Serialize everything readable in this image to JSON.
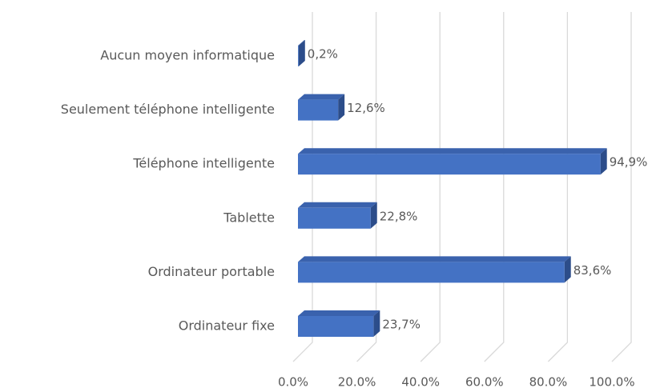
{
  "chart_data": {
    "type": "bar",
    "orientation": "horizontal",
    "three_d": true,
    "categories": [
      "Aucun moyen informatique",
      "Seulement téléphone intelligente",
      "Téléphone intelligente",
      "Tablette",
      "Ordinateur portable",
      "Ordinateur fixe"
    ],
    "values": [
      0.2,
      12.6,
      94.9,
      22.8,
      83.6,
      23.7
    ],
    "value_labels": [
      "0,2%",
      "12,6%",
      "94,9%",
      "22,8%",
      "83,6%",
      "23,7%"
    ],
    "color": "#4472c4",
    "xlim": [
      0,
      100
    ],
    "xticks": [
      {
        "value": 0,
        "label": "0.0%"
      },
      {
        "value": 20,
        "label": "20.0%"
      },
      {
        "value": 40,
        "label": "40.0%"
      },
      {
        "value": 60,
        "label": "60.0%"
      },
      {
        "value": 80,
        "label": "80.0%"
      },
      {
        "value": 100,
        "label": "100.0%"
      }
    ],
    "grid": true
  }
}
